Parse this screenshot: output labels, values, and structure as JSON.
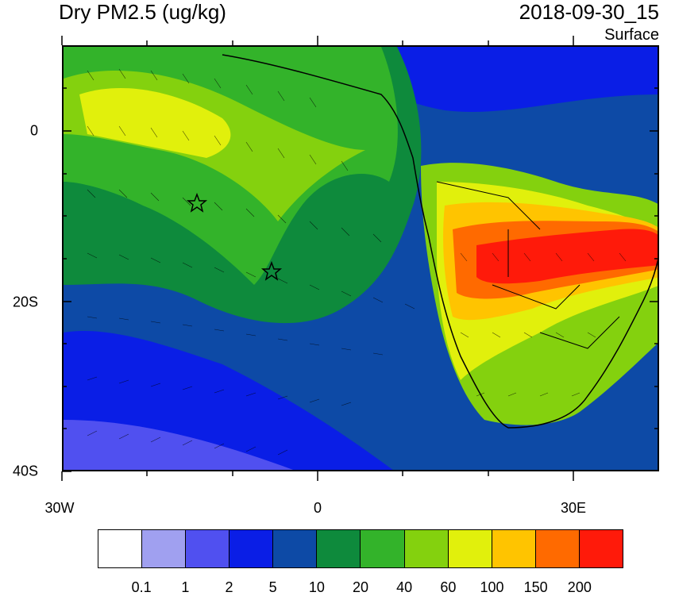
{
  "title": "Dry PM2.5 (ug/kg)",
  "datetime": "2018-09-30_15",
  "level": "Surface",
  "y_axis_labels": [
    "0",
    "20S",
    "40S"
  ],
  "x_axis_labels": [
    "30W",
    "0",
    "30E"
  ],
  "colorbar": {
    "labels": [
      "0.1",
      "1",
      "2",
      "5",
      "10",
      "20",
      "40",
      "60",
      "100",
      "150",
      "200"
    ],
    "colors": [
      "#ffffff",
      "#a0a0f0",
      "#5050f0",
      "#0a1ee6",
      "#0d4aa6",
      "#0e8a3c",
      "#33b32a",
      "#84d10e",
      "#e1f00c",
      "#ffc400",
      "#ff6a00",
      "#ff1a0a"
    ]
  },
  "markers": [
    "star",
    "star"
  ]
}
